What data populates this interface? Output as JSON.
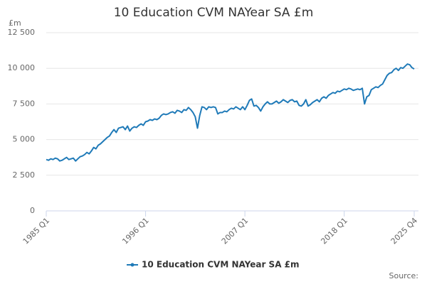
{
  "chart_data": {
    "type": "line",
    "title": "10 Education CVM NAYear SA £m",
    "y_label": "£m",
    "source": "Source:",
    "categories": [
      "1985 Q1",
      null,
      null,
      null,
      null,
      null,
      null,
      null,
      null,
      null,
      null,
      null,
      null,
      null,
      null,
      null,
      null,
      null,
      null,
      null,
      null,
      null,
      null,
      null,
      null,
      null,
      null,
      null,
      null,
      null,
      null,
      null,
      null,
      null,
      null,
      null,
      null,
      null,
      null,
      null,
      null,
      null,
      null,
      null,
      "1996 Q1",
      null,
      null,
      null,
      null,
      null,
      null,
      null,
      null,
      null,
      null,
      null,
      null,
      null,
      null,
      null,
      null,
      null,
      null,
      null,
      null,
      null,
      null,
      null,
      null,
      null,
      null,
      null,
      null,
      null,
      null,
      null,
      null,
      null,
      null,
      null,
      null,
      null,
      null,
      null,
      null,
      null,
      null,
      null,
      "2007 Q1",
      null,
      null,
      null,
      null,
      null,
      null,
      null,
      null,
      null,
      null,
      null,
      null,
      null,
      null,
      null,
      null,
      null,
      null,
      null,
      null,
      null,
      null,
      null,
      null,
      null,
      null,
      null,
      null,
      null,
      null,
      null,
      null,
      null,
      null,
      null,
      null,
      null,
      null,
      null,
      null,
      null,
      null,
      null,
      "2018 Q1",
      null,
      null,
      null,
      null,
      null,
      null,
      null,
      null,
      null,
      null,
      null,
      null,
      null,
      null,
      null,
      null,
      null,
      null,
      null,
      null,
      null,
      null,
      null,
      null,
      null,
      null,
      null,
      null,
      null,
      null,
      "2025 Q4"
    ],
    "series": [
      {
        "name": "10 Education CVM NAYear SA £m",
        "color": "#1f7ab8",
        "values": [
          3600,
          3550,
          3650,
          3600,
          3700,
          3650,
          3500,
          3550,
          3650,
          3750,
          3600,
          3650,
          3700,
          3500,
          3650,
          3800,
          3850,
          3950,
          4100,
          4000,
          4200,
          4450,
          4350,
          4600,
          4700,
          4850,
          5000,
          5150,
          5250,
          5500,
          5700,
          5500,
          5800,
          5850,
          5900,
          5700,
          5950,
          5600,
          5800,
          5900,
          5850,
          6000,
          6100,
          6000,
          6250,
          6300,
          6400,
          6350,
          6450,
          6400,
          6500,
          6700,
          6800,
          6750,
          6800,
          6900,
          6950,
          6850,
          7050,
          7000,
          6900,
          7100,
          7050,
          7250,
          7100,
          6900,
          6600,
          5800,
          6700,
          7300,
          7250,
          7100,
          7300,
          7250,
          7300,
          7250,
          6800,
          6900,
          6900,
          7000,
          6950,
          7100,
          7200,
          7150,
          7300,
          7200,
          7100,
          7300,
          7100,
          7400,
          7750,
          7850,
          7350,
          7400,
          7250,
          7000,
          7300,
          7500,
          7650,
          7500,
          7500,
          7600,
          7700,
          7550,
          7650,
          7800,
          7700,
          7600,
          7750,
          7800,
          7650,
          7700,
          7400,
          7350,
          7500,
          7800,
          7350,
          7450,
          7600,
          7700,
          7800,
          7650,
          7900,
          8000,
          7900,
          8100,
          8200,
          8300,
          8250,
          8400,
          8350,
          8450,
          8550,
          8500,
          8600,
          8550,
          8450,
          8500,
          8550,
          8500,
          8600,
          7500,
          8000,
          8100,
          8500,
          8600,
          8700,
          8650,
          8800,
          8900,
          9200,
          9500,
          9650,
          9700,
          9900,
          10000,
          9850,
          10050,
          10000,
          10150,
          10300,
          10250,
          10050,
          9950
        ]
      }
    ],
    "ylim": [
      0,
      12500
    ],
    "yticks": [
      0,
      {
        "value": 2500,
        "label": "2 500"
      },
      {
        "value": 5000,
        "label": "5 000"
      },
      {
        "value": 7500,
        "label": "7 500"
      },
      {
        "value": 10000,
        "label": "10 000"
      },
      {
        "value": 12500,
        "label": "12 500"
      }
    ],
    "grid": true
  }
}
